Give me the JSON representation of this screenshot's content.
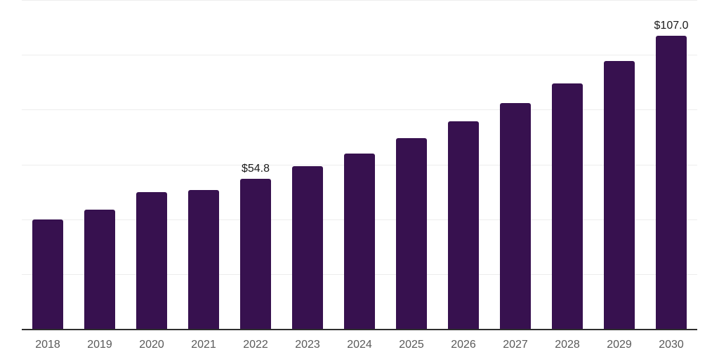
{
  "chart_data": {
    "type": "bar",
    "title": "",
    "xlabel": "",
    "ylabel": "",
    "categories": [
      "2018",
      "2019",
      "2020",
      "2021",
      "2022",
      "2023",
      "2024",
      "2025",
      "2026",
      "2027",
      "2028",
      "2029",
      "2030"
    ],
    "values": [
      40.0,
      43.4,
      50.0,
      50.7,
      54.8,
      59.3,
      64.1,
      69.7,
      75.7,
      82.3,
      89.5,
      97.7,
      107.0
    ],
    "data_labels": [
      null,
      null,
      null,
      null,
      "$54.8",
      null,
      null,
      null,
      null,
      null,
      null,
      null,
      "$107.0"
    ],
    "ylim": [
      0,
      120
    ],
    "gridline_step": 20,
    "grid": true,
    "legend": false,
    "colors": {
      "bar": "#37114F",
      "axis_line": "#2E2E2E",
      "gridline": "#EDEDED",
      "tick_label": "#595959",
      "data_label": "#1A1A1A",
      "background": "#FFFFFF"
    }
  }
}
